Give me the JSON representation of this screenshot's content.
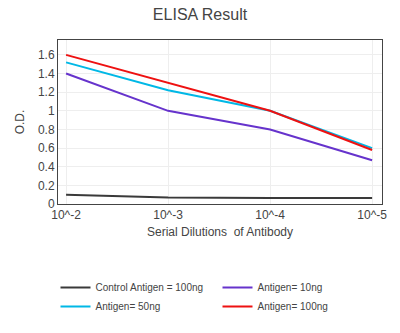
{
  "chart_data": {
    "type": "line",
    "title": "ELISA Result",
    "xlabel": "Serial Dilutions  of Antibody",
    "ylabel": "O.D.",
    "x": [
      0.01,
      0.001,
      0.0001,
      1e-05
    ],
    "series": [
      {
        "name": "Control Antigen = 100ng",
        "color": "#3a3a3a",
        "values": [
          0.1,
          0.07,
          0.065,
          0.065
        ]
      },
      {
        "name": "Antigen= 10ng",
        "color": "#6633cc",
        "values": [
          1.4,
          1.0,
          0.8,
          0.47
        ]
      },
      {
        "name": "Antigen= 50ng",
        "color": "#00b8e6",
        "values": [
          1.52,
          1.22,
          1.0,
          0.6
        ]
      },
      {
        "name": "Antigen= 100ng",
        "color": "#ee1111",
        "values": [
          1.6,
          1.3,
          1.0,
          0.58
        ]
      }
    ],
    "log": "x",
    "xlim": [
      0.012,
      8e-06
    ],
    "xticks": [
      {
        "value": 0.01,
        "label": "10^-2"
      },
      {
        "value": 0.001,
        "label": "10^-3"
      },
      {
        "value": 0.0001,
        "label": "10^-4"
      },
      {
        "value": 1e-05,
        "label": "10^-5"
      }
    ],
    "ylim": [
      0,
      1.76
    ],
    "yticks": [
      0,
      0.2,
      0.4,
      0.6,
      0.8,
      1,
      1.2,
      1.4,
      1.6
    ],
    "grid": true,
    "legend": "bottom"
  }
}
